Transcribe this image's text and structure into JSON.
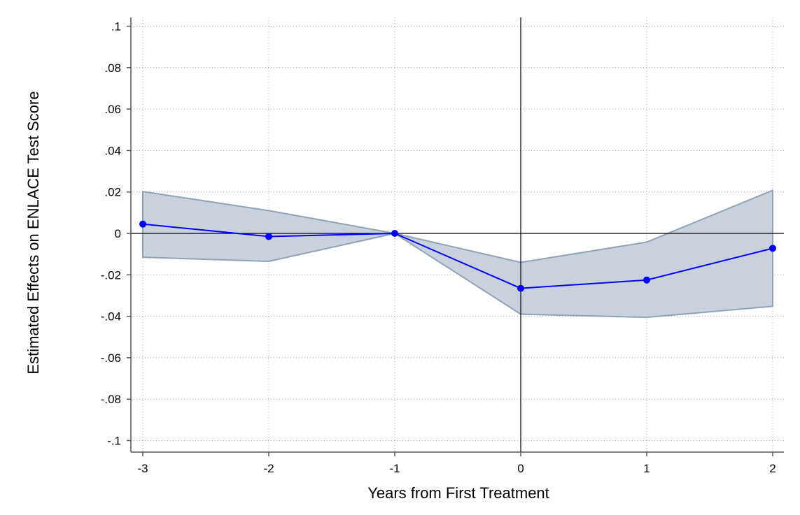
{
  "chart_data": {
    "type": "line",
    "title": "",
    "xlabel": "Years from First Treatment",
    "ylabel": "Estimated Effects on ENLACE Test Score",
    "x": [
      -3,
      -2,
      -1,
      0,
      1,
      2
    ],
    "x_tick_labels": [
      "-3",
      "-2",
      "-1",
      "0",
      "1",
      "2"
    ],
    "y_ticks": [
      0.1,
      0.08,
      0.06,
      0.04,
      0.02,
      0,
      -0.02,
      -0.04,
      -0.06,
      -0.08,
      -0.1
    ],
    "y_tick_labels": [
      ".1",
      ".08",
      ".06",
      ".04",
      ".02",
      "0",
      "-.02",
      "-.04",
      "-.06",
      "-.08",
      "-.1"
    ],
    "xlim": [
      -3.1,
      2.1
    ],
    "ylim": [
      -0.105,
      0.105
    ],
    "grid": "horizontal dotted",
    "reference_lines": {
      "x": 0,
      "y": 0
    },
    "series": [
      {
        "values": [
          0.0045,
          -0.0015,
          0.0,
          -0.0265,
          -0.0225,
          -0.0072
        ]
      }
    ],
    "confidence_band": {
      "lower": [
        -0.0115,
        -0.0135,
        0.0,
        -0.039,
        -0.0405,
        -0.0352
      ],
      "upper": [
        0.0202,
        0.011,
        0.0,
        -0.014,
        -0.0042,
        0.0208
      ]
    },
    "colors": {
      "line": "#0000ff",
      "band_fill": "#c9d2dc",
      "band_edge": "#8fa3b8",
      "grid": "#a0a0a0",
      "axis": "#555555",
      "reference": "#000000"
    }
  }
}
